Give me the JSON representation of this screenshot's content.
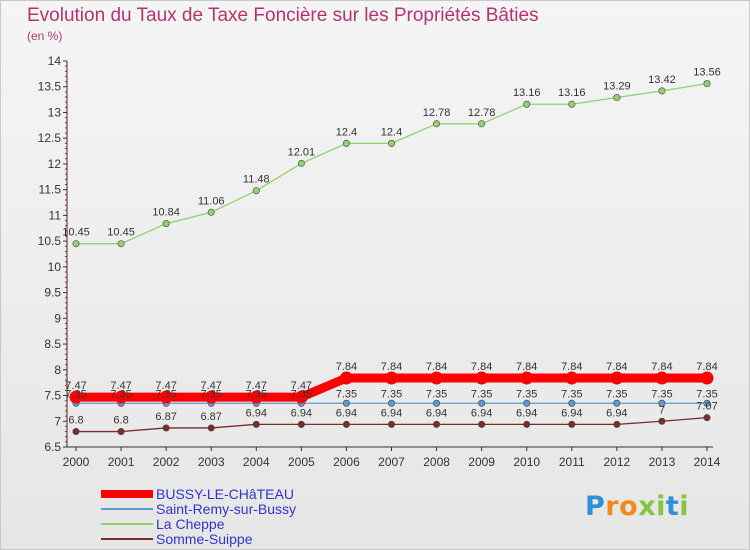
{
  "title": "Evolution du Taux de Taxe Foncière sur les Propriétés Bâties",
  "subtitle": "(en %)",
  "chart_data": {
    "type": "line",
    "title": "Evolution du Taux de Taxe Foncière sur les Propriétés Bâties",
    "ylabel": "(en %)",
    "xlabel": "",
    "x": [
      2000,
      2001,
      2002,
      2003,
      2004,
      2005,
      2006,
      2007,
      2008,
      2009,
      2010,
      2011,
      2012,
      2013,
      2014
    ],
    "ylim": [
      6.5,
      14
    ],
    "yticks": [
      6.5,
      7,
      7.5,
      8,
      8.5,
      9,
      9.5,
      10,
      10.5,
      11,
      11.5,
      12,
      12.5,
      13,
      13.5,
      14
    ],
    "ytick_labels": [
      "6.5",
      "7",
      "7.5",
      "8",
      "8.5",
      "9",
      "9.5",
      "10",
      "10.5",
      "11",
      "11.5",
      "12",
      "12.5",
      "13",
      "13.5",
      "14"
    ],
    "series": [
      {
        "name": "BUSSY-LE-CHâTEAU",
        "color": "#ff0000",
        "values": [
          7.47,
          7.47,
          7.47,
          7.47,
          7.47,
          7.47,
          7.84,
          7.84,
          7.84,
          7.84,
          7.84,
          7.84,
          7.84,
          7.84,
          7.84
        ],
        "labels": [
          "7.47",
          "7.47",
          "7.47",
          "7.47",
          "7.47",
          "7.47",
          "7.84",
          "7.84",
          "7.84",
          "7.84",
          "7.84",
          "7.84",
          "7.84",
          "7.84",
          "7.84"
        ]
      },
      {
        "name": "Saint-Remy-sur-Bussy",
        "color": "#5b9bd5",
        "values": [
          7.35,
          7.35,
          7.35,
          7.35,
          7.35,
          7.35,
          7.35,
          7.35,
          7.35,
          7.35,
          7.35,
          7.35,
          7.35,
          7.35,
          7.35
        ],
        "labels": [
          "7.35",
          "7.35",
          "7.35",
          "7.35",
          "7.35",
          "7.35",
          "7.35",
          "7.35",
          "7.35",
          "7.35",
          "7.35",
          "7.35",
          "7.35",
          "7.35",
          "7.35"
        ]
      },
      {
        "name": "La Cheppe",
        "color": "#8fd36b",
        "values": [
          10.45,
          10.45,
          10.84,
          11.06,
          11.48,
          12.01,
          12.4,
          12.4,
          12.78,
          12.78,
          13.16,
          13.16,
          13.29,
          13.42,
          13.56
        ],
        "labels": [
          "10.45",
          "10.45",
          "10.84",
          "11.06",
          "11.48",
          "12.01",
          "12.4",
          "12.4",
          "12.78",
          "12.78",
          "13.16",
          "13.16",
          "13.29",
          "13.42",
          "13.56"
        ]
      },
      {
        "name": "Somme-Suippe",
        "color": "#7a2c2c",
        "values": [
          6.8,
          6.8,
          6.87,
          6.87,
          6.94,
          6.94,
          6.94,
          6.94,
          6.94,
          6.94,
          6.94,
          6.94,
          6.94,
          7.0,
          7.07
        ],
        "labels": [
          "6.8",
          "6.8",
          "6.87",
          "6.87",
          "6.94",
          "6.94",
          "6.94",
          "6.94",
          "6.94",
          "6.94",
          "6.94",
          "6.94",
          "6.94",
          "7",
          "7.07"
        ]
      }
    ],
    "legend_position": "bottom-left",
    "grid": false
  },
  "legend": {
    "items": [
      {
        "label": "BUSSY-LE-CHâTEAU",
        "color": "#ff0000"
      },
      {
        "label": "Saint-Remy-sur-Bussy",
        "color": "#5b9bd5"
      },
      {
        "label": "La Cheppe",
        "color": "#8fd36b"
      },
      {
        "label": "Somme-Suippe",
        "color": "#7a2c2c"
      }
    ]
  },
  "logo": {
    "text": "Proxiti"
  }
}
